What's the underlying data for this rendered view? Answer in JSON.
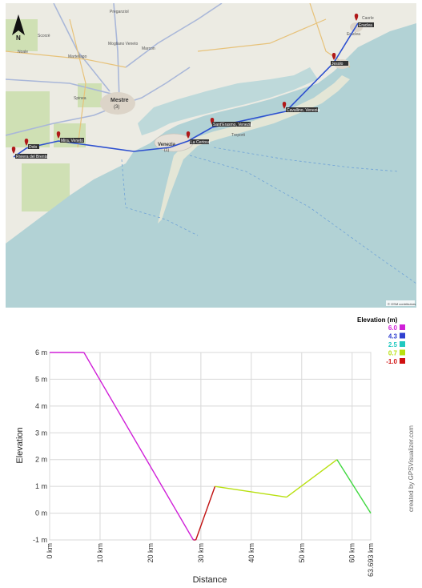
{
  "map": {
    "north_label": "N",
    "attribution": "© OSM contributors",
    "city_label": "Mestre",
    "city_sub": "(3)",
    "venice_label": "Venezia",
    "venice_sub": "(1)",
    "towns": [
      "Preganziol",
      "Mogliano Veneto",
      "Marcon",
      "Scorzè",
      "Noale",
      "Martellago",
      "Spinea",
      "Treporti",
      "Caorle",
      "Eraclea"
    ],
    "route_color": "#2c4fd0",
    "waypoints": [
      {
        "name": "Riviera del Brenta"
      },
      {
        "name": "Dolo"
      },
      {
        "name": "Mira, Veneto"
      },
      {
        "name": "Venezia"
      },
      {
        "name": "La Certosa"
      },
      {
        "name": "Sant'Erasmo, Venezia"
      },
      {
        "name": "Cavallino, Venezia"
      },
      {
        "name": "Jesolo"
      },
      {
        "name": "Eraclea"
      }
    ]
  },
  "legend": {
    "title": "Elevation (m)",
    "items": [
      {
        "value": "6.0",
        "color": "#d020d8"
      },
      {
        "value": "4.3",
        "color": "#3040d0"
      },
      {
        "value": "2.5",
        "color": "#20c8c0"
      },
      {
        "value": "0.7",
        "color": "#b8e010"
      },
      {
        "value": "-1.0",
        "color": "#d01010"
      }
    ]
  },
  "credit": "created by GPSVisualizer.com",
  "chart_data": {
    "type": "line",
    "xlabel": "Distance",
    "ylabel": "Elevation",
    "x_ticks": [
      "0 km",
      "10 km",
      "20 km",
      "30 km",
      "40 km",
      "50 km",
      "60 km",
      "63.693 km"
    ],
    "x_tick_values": [
      0,
      10,
      20,
      30,
      40,
      50,
      60,
      63.693
    ],
    "y_ticks": [
      "-1 m",
      "0 m",
      "1 m",
      "2 m",
      "3 m",
      "4 m",
      "5 m",
      "6 m"
    ],
    "y_tick_values": [
      -1,
      0,
      1,
      2,
      3,
      4,
      5,
      6
    ],
    "xlim": [
      0,
      63.693
    ],
    "ylim": [
      -1,
      6
    ],
    "grid": true,
    "series": [
      {
        "x": [
          0,
          6.8,
          28.5,
          29.0,
          32.8,
          47.0,
          57.0,
          63.693
        ],
        "y": [
          6,
          6,
          -1,
          -1,
          1,
          0.6,
          2,
          0
        ],
        "colors": [
          "#d020d8",
          "#d020d8",
          "#c01050",
          "#c01010",
          "#b8e010",
          "#b8e010",
          "#40d840"
        ]
      }
    ]
  }
}
